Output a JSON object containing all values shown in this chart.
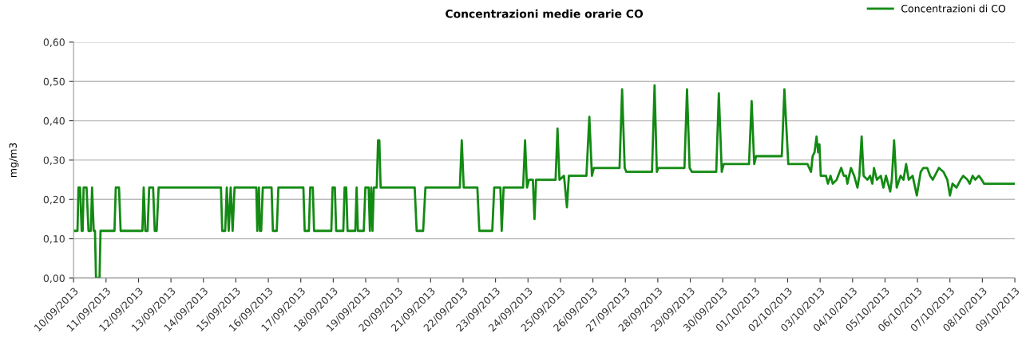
{
  "chart_data": {
    "type": "line",
    "title": "Concentrazioni medie orarie CO",
    "ylabel": "mg/m3",
    "xlim": [
      "2013-09-10",
      "2013-10-09"
    ],
    "ylim": [
      0,
      0.6
    ],
    "yticks": [
      {
        "value": 0,
        "label": "0,00"
      },
      {
        "value": 0.1,
        "label": "0,10"
      },
      {
        "value": 0.2,
        "label": "0,20"
      },
      {
        "value": 0.3,
        "label": "0,30"
      },
      {
        "value": 0.4,
        "label": "0,40"
      },
      {
        "value": 0.5,
        "label": "0,50"
      },
      {
        "value": 0.6,
        "label": "0,60"
      }
    ],
    "xticks": [
      {
        "value": "2013-09-10",
        "label": "10/09/2013"
      },
      {
        "value": "2013-09-11",
        "label": "11/09/2013"
      },
      {
        "value": "2013-09-12",
        "label": "12/09/2013"
      },
      {
        "value": "2013-09-13",
        "label": "13/09/2013"
      },
      {
        "value": "2013-09-14",
        "label": "14/09/2013"
      },
      {
        "value": "2013-09-15",
        "label": "15/09/2013"
      },
      {
        "value": "2013-09-16",
        "label": "16/09/2013"
      },
      {
        "value": "2013-09-17",
        "label": "17/09/2013"
      },
      {
        "value": "2013-09-18",
        "label": "18/09/2013"
      },
      {
        "value": "2013-09-19",
        "label": "19/09/2013"
      },
      {
        "value": "2013-09-20",
        "label": "20/09/2013"
      },
      {
        "value": "2013-09-21",
        "label": "21/09/2013"
      },
      {
        "value": "2013-09-22",
        "label": "22/09/2013"
      },
      {
        "value": "2013-09-23",
        "label": "23/09/2013"
      },
      {
        "value": "2013-09-24",
        "label": "24/09/2013"
      },
      {
        "value": "2013-09-25",
        "label": "25/09/2013"
      },
      {
        "value": "2013-09-26",
        "label": "26/09/2013"
      },
      {
        "value": "2013-09-27",
        "label": "27/09/2013"
      },
      {
        "value": "2013-09-28",
        "label": "28/09/2013"
      },
      {
        "value": "2013-09-29",
        "label": "29/09/2013"
      },
      {
        "value": "2013-09-30",
        "label": "30/09/2013"
      },
      {
        "value": "2013-10-01",
        "label": "01/10/2013"
      },
      {
        "value": "2013-10-02",
        "label": "02/10/2013"
      },
      {
        "value": "2013-10-03",
        "label": "03/10/2013"
      },
      {
        "value": "2013-10-04",
        "label": "04/10/2013"
      },
      {
        "value": "2013-10-05",
        "label": "05/10/2013"
      },
      {
        "value": "2013-10-06",
        "label": "06/10/2013"
      },
      {
        "value": "2013-10-07",
        "label": "07/10/2013"
      },
      {
        "value": "2013-10-08",
        "label": "08/10/2013"
      },
      {
        "value": "2013-10-09",
        "label": "09/10/2013"
      }
    ],
    "grid": "y",
    "legend": "top right",
    "marker": "none",
    "line_style": "solid",
    "series": [
      {
        "name": "Concentrazioni di CO",
        "color": "#138a13",
        "x": [
          "2013-09-10T00:00",
          "2013-09-10T02:53",
          "2013-09-10T03:36",
          "2013-09-10T04:48",
          "2013-09-10T06:00",
          "2013-09-10T06:43",
          "2013-09-10T07:26",
          "2013-09-10T09:36",
          "2013-09-10T11:02",
          "2013-09-10T12:43",
          "2013-09-10T13:41",
          "2013-09-10T14:53",
          "2013-09-10T15:50",
          "2013-09-10T16:34",
          "2013-09-10T19:12",
          "2013-09-10T19:55",
          "2013-09-11T06:14",
          "2013-09-11T07:12",
          "2013-09-11T09:36",
          "2013-09-11T10:48",
          "2013-09-12T02:53",
          "2013-09-12T03:50",
          "2013-09-12T05:02",
          "2013-09-12T06:43",
          "2013-09-12T07:55",
          "2013-09-12T10:48",
          "2013-09-12T12:00",
          "2013-09-12T13:26",
          "2013-09-12T14:53",
          "2013-09-14T12:58",
          "2013-09-14T13:55",
          "2013-09-14T16:05",
          "2013-09-14T17:17",
          "2013-09-14T18:43",
          "2013-09-14T20:10",
          "2013-09-14T21:36",
          "2013-09-14T23:02",
          "2013-09-15T15:07",
          "2013-09-15T15:50",
          "2013-09-15T17:02",
          "2013-09-15T17:46",
          "2013-09-15T18:43",
          "2013-09-15T19:55",
          "2013-09-16T02:24",
          "2013-09-16T03:22",
          "2013-09-16T06:14",
          "2013-09-16T07:26",
          "2013-09-17T01:55",
          "2013-09-17T02:53",
          "2013-09-17T06:00",
          "2013-09-17T06:58",
          "2013-09-17T08:53",
          "2013-09-17T09:50",
          "2013-09-17T22:34",
          "2013-09-17T23:31",
          "2013-09-18T01:12",
          "2013-09-18T02:10",
          "2013-09-18T07:26",
          "2013-09-18T08:24",
          "2013-09-18T09:36",
          "2013-09-18T10:34",
          "2013-09-18T16:19",
          "2013-09-18T17:17",
          "2013-09-18T18:14",
          "2013-09-18T22:34",
          "2013-09-18T23:46",
          "2013-09-19T02:10",
          "2013-09-19T03:07",
          "2013-09-19T04:05",
          "2013-09-19T05:02",
          "2013-09-19T06:00",
          "2013-09-19T08:10",
          "2013-09-19T09:07",
          "2013-09-19T10:05",
          "2013-09-19T11:02",
          "2013-09-20T12:14",
          "2013-09-20T13:41",
          "2013-09-20T18:29",
          "2013-09-20T20:10",
          "2013-09-21T21:36",
          "2013-09-21T23:02",
          "2013-09-22T00:29",
          "2013-09-22T10:34",
          "2013-09-22T12:00",
          "2013-09-22T21:36",
          "2013-09-22T23:02",
          "2013-09-23T03:36",
          "2013-09-23T04:34",
          "2013-09-23T06:00",
          "2013-09-23T20:24",
          "2013-09-23T21:50",
          "2013-09-23T23:17",
          "2013-09-24T00:43",
          "2013-09-24T03:36",
          "2013-09-24T04:48",
          "2013-09-24T06:00",
          "2013-09-24T20:24",
          "2013-09-24T21:50",
          "2013-09-24T23:17",
          "2013-09-25T02:38",
          "2013-09-25T04:48",
          "2013-09-25T06:14",
          "2013-09-25T19:12",
          "2013-09-25T21:22",
          "2013-09-25T23:17",
          "2013-09-26T00:43",
          "2013-09-26T19:41",
          "2013-09-26T21:36",
          "2013-09-26T23:31",
          "2013-09-27T00:43",
          "2013-09-27T19:41",
          "2013-09-27T21:36",
          "2013-09-27T23:17",
          "2013-09-28T00:29",
          "2013-09-28T19:41",
          "2013-09-28T21:36",
          "2013-09-28T23:31",
          "2013-09-29T01:12",
          "2013-09-29T19:12",
          "2013-09-29T21:07",
          "2013-09-29T23:17",
          "2013-09-30T00:43",
          "2013-09-30T19:26",
          "2013-09-30T21:22",
          "2013-09-30T23:17",
          "2013-10-01T00:43",
          "2013-10-01T19:41",
          "2013-10-01T21:36",
          "2013-10-02T00:29",
          "2013-10-02T14:38",
          "2013-10-02T17:17",
          "2013-10-02T18:29",
          "2013-10-02T19:55",
          "2013-10-02T21:22",
          "2013-10-02T22:34",
          "2013-10-02T23:31",
          "2013-10-03T00:29",
          "2013-10-03T04:19",
          "2013-10-03T05:46",
          "2013-10-03T07:41",
          "2013-10-03T09:22",
          "2013-10-03T12:14",
          "2013-10-03T15:36",
          "2013-10-03T17:31",
          "2013-10-03T19:12",
          "2013-10-03T20:10",
          "2013-10-03T22:48",
          "2013-10-04T01:12",
          "2013-10-04T03:36",
          "2013-10-04T05:02",
          "2013-10-04T06:43",
          "2013-10-04T08:10",
          "2013-10-04T11:02",
          "2013-10-04T12:58",
          "2013-10-04T14:38",
          "2013-10-04T15:50",
          "2013-10-04T18:00",
          "2013-10-04T20:53",
          "2013-10-04T22:48",
          "2013-10-05T00:43",
          "2013-10-05T03:50",
          "2013-10-05T05:02",
          "2013-10-05T06:43",
          "2013-10-05T08:38",
          "2013-10-05T11:31",
          "2013-10-05T13:41",
          "2013-10-05T15:36",
          "2013-10-05T17:31",
          "2013-10-05T20:24",
          "2013-10-05T23:31",
          "2013-10-06T02:24",
          "2013-10-06T04:19",
          "2013-10-06T07:12",
          "2013-10-06T09:22",
          "2013-10-06T11:17",
          "2013-10-06T15:50",
          "2013-10-06T19:12",
          "2013-10-06T22:05",
          "2013-10-07T00:00",
          "2013-10-07T01:55",
          "2013-10-07T04:48",
          "2013-10-07T07:55",
          "2013-10-07T09:50",
          "2013-10-07T12:58",
          "2013-10-07T14:38",
          "2013-10-07T16:48",
          "2013-10-07T18:43",
          "2013-10-07T21:22",
          "2013-10-07T23:31",
          "2013-10-08T01:12",
          "2013-10-09T00:00"
        ],
        "values": [
          0.12,
          0.12,
          0.23,
          0.23,
          0.12,
          0.12,
          0.23,
          0.23,
          0.12,
          0.12,
          0.23,
          0.12,
          0.12,
          0.0,
          0.0,
          0.12,
          0.12,
          0.23,
          0.23,
          0.12,
          0.12,
          0.23,
          0.12,
          0.12,
          0.23,
          0.23,
          0.12,
          0.12,
          0.23,
          0.23,
          0.12,
          0.12,
          0.23,
          0.12,
          0.23,
          0.12,
          0.23,
          0.23,
          0.12,
          0.23,
          0.12,
          0.12,
          0.23,
          0.23,
          0.12,
          0.12,
          0.23,
          0.23,
          0.12,
          0.12,
          0.23,
          0.23,
          0.12,
          0.12,
          0.23,
          0.23,
          0.12,
          0.12,
          0.23,
          0.23,
          0.12,
          0.12,
          0.23,
          0.12,
          0.12,
          0.23,
          0.23,
          0.12,
          0.23,
          0.12,
          0.23,
          0.23,
          0.35,
          0.35,
          0.23,
          0.23,
          0.12,
          0.12,
          0.23,
          0.23,
          0.35,
          0.23,
          0.23,
          0.12,
          0.12,
          0.23,
          0.23,
          0.12,
          0.23,
          0.23,
          0.35,
          0.23,
          0.25,
          0.25,
          0.15,
          0.25,
          0.25,
          0.38,
          0.25,
          0.26,
          0.18,
          0.26,
          0.26,
          0.41,
          0.26,
          0.28,
          0.28,
          0.48,
          0.28,
          0.27,
          0.27,
          0.49,
          0.27,
          0.28,
          0.28,
          0.48,
          0.28,
          0.27,
          0.27,
          0.47,
          0.27,
          0.29,
          0.29,
          0.45,
          0.29,
          0.31,
          0.31,
          0.48,
          0.29,
          0.29,
          0.27,
          0.31,
          0.32,
          0.36,
          0.32,
          0.34,
          0.26,
          0.26,
          0.24,
          0.26,
          0.24,
          0.25,
          0.28,
          0.26,
          0.26,
          0.24,
          0.28,
          0.26,
          0.23,
          0.26,
          0.36,
          0.26,
          0.25,
          0.26,
          0.24,
          0.28,
          0.25,
          0.26,
          0.23,
          0.26,
          0.22,
          0.25,
          0.35,
          0.23,
          0.26,
          0.25,
          0.29,
          0.25,
          0.26,
          0.21,
          0.27,
          0.28,
          0.28,
          0.26,
          0.25,
          0.28,
          0.27,
          0.25,
          0.21,
          0.24,
          0.23,
          0.25,
          0.26,
          0.25,
          0.24,
          0.26,
          0.25,
          0.26,
          0.25,
          0.24,
          0.24
        ]
      }
    ]
  }
}
